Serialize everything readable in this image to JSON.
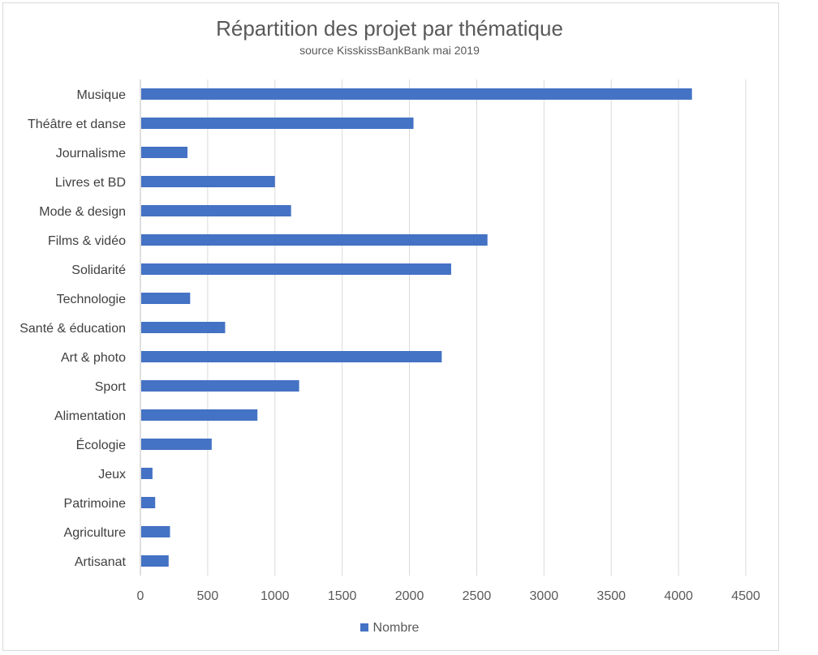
{
  "chart_data": {
    "type": "bar",
    "orientation": "horizontal",
    "title": "Répartition des projet par thématique",
    "subtitle": "source KisskissBankBank mai 2019",
    "categories": [
      "Musique",
      "Théâtre et danse",
      "Journalisme",
      "Livres et BD",
      "Mode & design",
      "Films & vidéo",
      "Solidarité",
      "Technologie",
      "Santé & éducation",
      "Art & photo",
      "Sport",
      "Alimentation",
      "Écologie",
      "Jeux",
      "Patrimoine",
      "Agriculture",
      "Artisanat"
    ],
    "series": [
      {
        "name": "Nombre",
        "values": [
          4100,
          2030,
          350,
          1000,
          1120,
          2580,
          2310,
          370,
          630,
          2240,
          1180,
          870,
          530,
          90,
          110,
          220,
          210
        ]
      }
    ],
    "xlim": [
      0,
      4500
    ],
    "xticks": [
      "0",
      "500",
      "1000",
      "1500",
      "2000",
      "2500",
      "3000",
      "3500",
      "4000",
      "4500"
    ],
    "grid": "vertical",
    "legend_position": "bottom",
    "bar_color": "#4472c4"
  }
}
